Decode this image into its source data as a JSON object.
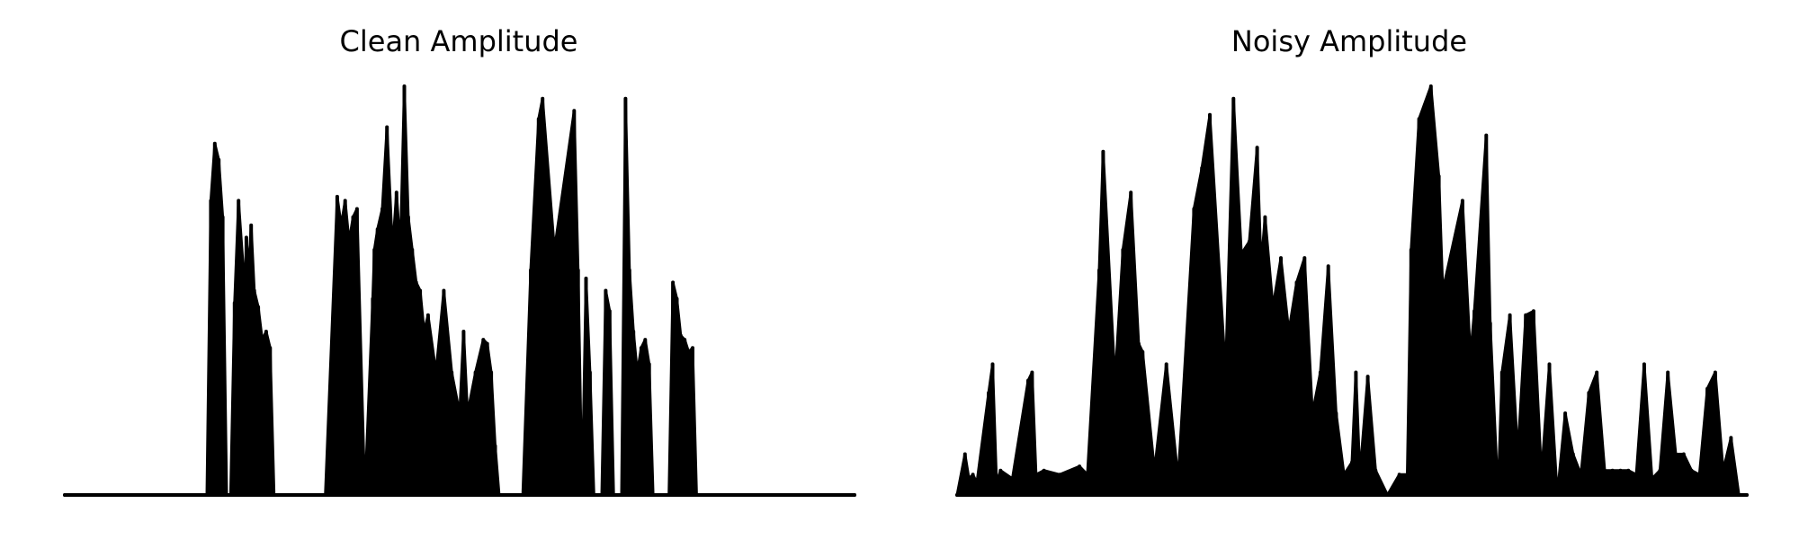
{
  "figure": {
    "background": "#ffffff",
    "line_color": "#000000"
  },
  "chart_data": [
    {
      "type": "line",
      "title": "Clean Amplitude",
      "xlabel": "",
      "ylabel": "",
      "axes_visible": false,
      "grid": false,
      "xlim": [
        0,
        1
      ],
      "ylim": [
        0,
        1.0
      ],
      "series": [
        {
          "style": "filled dense waveform envelope",
          "x": [
            0.0,
            0.18,
            0.185,
            0.19,
            0.195,
            0.2,
            0.205,
            0.21,
            0.215,
            0.22,
            0.228,
            0.23,
            0.233,
            0.236,
            0.24,
            0.245,
            0.25,
            0.255,
            0.26,
            0.265,
            0.27,
            0.275,
            0.28,
            0.287,
            0.33,
            0.345,
            0.35,
            0.355,
            0.36,
            0.365,
            0.37,
            0.38,
            0.39,
            0.392,
            0.396,
            0.402,
            0.408,
            0.415,
            0.42,
            0.425,
            0.43,
            0.435,
            0.44,
            0.445,
            0.45,
            0.455,
            0.46,
            0.47,
            0.48,
            0.49,
            0.5,
            0.505,
            0.51,
            0.52,
            0.53,
            0.535,
            0.54,
            0.545,
            0.55,
            0.555,
            0.56,
            0.57,
            0.575,
            0.58,
            0.59,
            0.6,
            0.605,
            0.62,
            0.645,
            0.65,
            0.655,
            0.66,
            0.665,
            0.67,
            0.675,
            0.68,
            0.685,
            0.69,
            0.695,
            0.7,
            0.705,
            0.71,
            0.715,
            0.72,
            0.725,
            0.73,
            0.735,
            0.74,
            0.745,
            0.75,
            0.755,
            0.76,
            0.765,
            0.77,
            0.775,
            0.78,
            0.785,
            0.79,
            0.795,
            0.8,
            0.805,
            0.81,
            0.815,
            0.82,
            0.825,
            0.83,
            0.835,
            0.84,
            0.85,
            0.9,
            1.0
          ],
          "y": [
            0.0,
            0.0,
            0.72,
            0.86,
            0.82,
            0.68,
            0.0,
            0.0,
            0.47,
            0.72,
            0.5,
            0.63,
            0.55,
            0.66,
            0.5,
            0.46,
            0.38,
            0.4,
            0.36,
            0.0,
            0.0,
            0.0,
            0.0,
            0.0,
            0.0,
            0.73,
            0.66,
            0.72,
            0.62,
            0.68,
            0.7,
            0.0,
            0.48,
            0.6,
            0.65,
            0.7,
            0.9,
            0.6,
            0.74,
            0.6,
            1.0,
            0.68,
            0.6,
            0.52,
            0.5,
            0.4,
            0.44,
            0.3,
            0.5,
            0.3,
            0.2,
            0.4,
            0.2,
            0.3,
            0.38,
            0.37,
            0.3,
            0.12,
            0.0,
            0.0,
            0.0,
            0.0,
            0.0,
            0.0,
            0.55,
            0.92,
            0.97,
            0.6,
            0.94,
            0.55,
            0.0,
            0.53,
            0.3,
            0.0,
            0.0,
            0.0,
            0.5,
            0.45,
            0.0,
            0.0,
            0.0,
            0.97,
            0.55,
            0.4,
            0.3,
            0.36,
            0.38,
            0.32,
            0.0,
            0.0,
            0.0,
            0.0,
            0.0,
            0.52,
            0.48,
            0.39,
            0.38,
            0.35,
            0.36,
            0.0,
            0.0,
            0.0,
            0.0,
            0.0,
            0.0,
            0.0,
            0.0,
            0.0,
            0.0,
            0.0,
            0.0
          ]
        }
      ]
    },
    {
      "type": "line",
      "title": "Noisy Amplitude",
      "xlabel": "",
      "ylabel": "",
      "axes_visible": false,
      "grid": false,
      "xlim": [
        0,
        1
      ],
      "ylim": [
        0,
        1.0
      ],
      "series": [
        {
          "style": "filled dense waveform envelope",
          "x": [
            0.0,
            0.01,
            0.015,
            0.02,
            0.025,
            0.04,
            0.045,
            0.05,
            0.055,
            0.07,
            0.09,
            0.095,
            0.1,
            0.11,
            0.13,
            0.155,
            0.165,
            0.18,
            0.185,
            0.2,
            0.21,
            0.22,
            0.23,
            0.235,
            0.25,
            0.265,
            0.28,
            0.3,
            0.31,
            0.32,
            0.34,
            0.35,
            0.36,
            0.37,
            0.38,
            0.385,
            0.39,
            0.4,
            0.41,
            0.42,
            0.43,
            0.44,
            0.45,
            0.46,
            0.47,
            0.48,
            0.49,
            0.5,
            0.505,
            0.51,
            0.52,
            0.53,
            0.545,
            0.56,
            0.57,
            0.575,
            0.585,
            0.6,
            0.61,
            0.615,
            0.64,
            0.65,
            0.655,
            0.67,
            0.675,
            0.685,
            0.69,
            0.7,
            0.71,
            0.72,
            0.73,
            0.74,
            0.75,
            0.76,
            0.77,
            0.78,
            0.79,
            0.8,
            0.81,
            0.82,
            0.83,
            0.84,
            0.85,
            0.86,
            0.87,
            0.88,
            0.89,
            0.9,
            0.91,
            0.92,
            0.93,
            0.94,
            0.95,
            0.96,
            0.97,
            0.98,
            0.99,
            1.0
          ],
          "y": [
            0.0,
            0.1,
            0.04,
            0.05,
            0.03,
            0.25,
            0.32,
            0.03,
            0.06,
            0.04,
            0.28,
            0.3,
            0.05,
            0.06,
            0.05,
            0.07,
            0.05,
            0.55,
            0.84,
            0.28,
            0.6,
            0.74,
            0.37,
            0.35,
            0.06,
            0.32,
            0.04,
            0.7,
            0.8,
            0.93,
            0.3,
            0.97,
            0.59,
            0.62,
            0.85,
            0.56,
            0.68,
            0.46,
            0.58,
            0.4,
            0.52,
            0.58,
            0.2,
            0.3,
            0.56,
            0.2,
            0.05,
            0.08,
            0.3,
            0.05,
            0.29,
            0.06,
            0.0,
            0.05,
            0.05,
            0.6,
            0.92,
            1.0,
            0.78,
            0.5,
            0.72,
            0.34,
            0.45,
            0.88,
            0.42,
            0.0,
            0.3,
            0.44,
            0.1,
            0.44,
            0.45,
            0.05,
            0.32,
            0.0,
            0.2,
            0.1,
            0.05,
            0.25,
            0.3,
            0.06,
            0.06,
            0.06,
            0.06,
            0.05,
            0.32,
            0.04,
            0.06,
            0.3,
            0.1,
            0.1,
            0.06,
            0.05,
            0.26,
            0.3,
            0.06,
            0.14,
            0.0,
            0.0
          ]
        }
      ]
    }
  ]
}
